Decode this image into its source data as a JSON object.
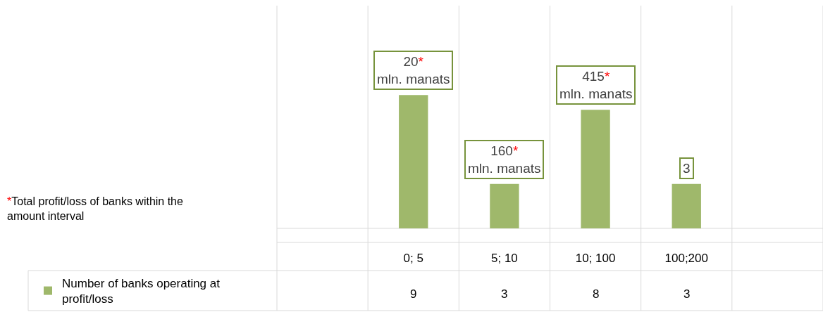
{
  "chart_data": {
    "type": "bar",
    "categories": [
      null,
      "0; 5",
      "5; 10",
      "10; 100",
      "100;200",
      null
    ],
    "series": [
      {
        "name": "Number of banks operating at profit/loss",
        "color": "#9fb86b",
        "values": [
          null,
          9,
          3,
          8,
          3,
          null
        ]
      }
    ],
    "data_labels": true,
    "annotations": [
      {
        "text": "20*\nmln. manats",
        "x": "0; 5",
        "y": 9
      },
      {
        "text": "160*\nmln. manats",
        "x": "5; 10",
        "y": 3
      },
      {
        "text": "415*\nmln. manats",
        "x": "10; 100",
        "y": 8
      },
      {
        "text": "3",
        "x": "100;200",
        "y": 3
      },
      "*Total profit/loss of banks within the amount interval"
    ],
    "grid": "x",
    "legend": "bottom left",
    "tick_labels": "x"
  }
}
